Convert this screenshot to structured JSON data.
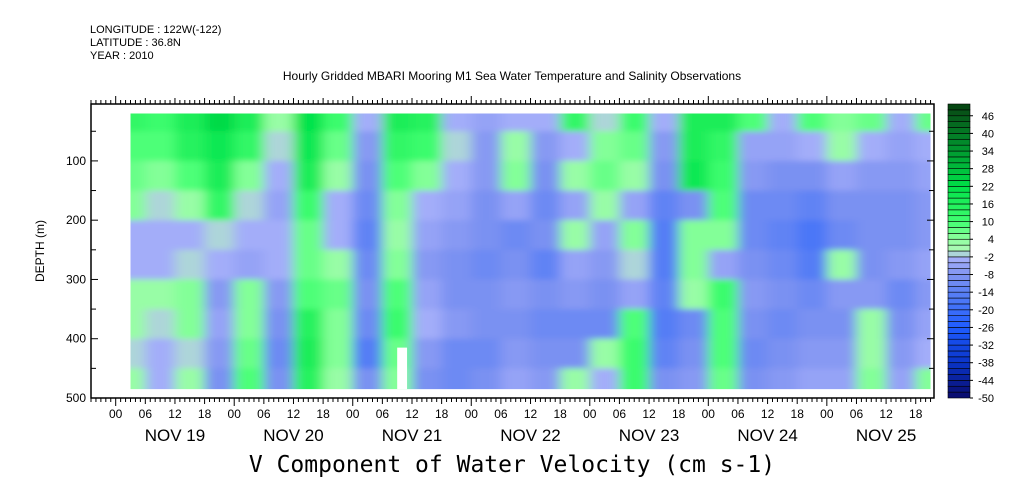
{
  "header": {
    "longitude": "LONGITUDE : 122W(-122)",
    "latitude": "LATITUDE : 36.8N",
    "year": "YEAR : 2010"
  },
  "chart_data": {
    "type": "heatmap",
    "title": "Hourly Gridded MBARI Mooring M1 Sea Water Temperature and Salinity Observations",
    "xlabel": "V Component of Water Velocity (cm s-1)",
    "ylabel": "DEPTH (m)",
    "x_units": "hours since NOV 19 00:00",
    "xlim": [
      -5,
      165.7
    ],
    "ylim": [
      500,
      4
    ],
    "y_ticks": [
      100,
      200,
      300,
      400,
      500
    ],
    "x_hour_ticks": [
      "00",
      "06",
      "12",
      "18"
    ],
    "x_days": [
      "NOV 19",
      "NOV 20",
      "NOV 21",
      "NOV 22",
      "NOV 23",
      "NOV 24",
      "NOV 25"
    ],
    "x": [
      3,
      9,
      15,
      21,
      27,
      33,
      39,
      45,
      51,
      57,
      63,
      69,
      75,
      81,
      87,
      93,
      99,
      105,
      111,
      117,
      123,
      129,
      135,
      141,
      147,
      153,
      159,
      165
    ],
    "depths": [
      25,
      75,
      125,
      175,
      225,
      275,
      325,
      375,
      425,
      475
    ],
    "values": [
      [
        12,
        8,
        6,
        4,
        -4,
        -4,
        3,
        2,
        -2,
        3
      ],
      [
        10,
        8,
        4,
        -2,
        -4,
        -4,
        2,
        -2,
        -4,
        -4
      ],
      [
        16,
        14,
        8,
        2,
        -4,
        -2,
        4,
        4,
        -2,
        2
      ],
      [
        22,
        18,
        16,
        12,
        -2,
        -4,
        -8,
        -6,
        -8,
        -10
      ],
      [
        16,
        12,
        4,
        -2,
        -4,
        -6,
        4,
        4,
        6,
        8
      ],
      [
        2,
        -2,
        -4,
        -6,
        -4,
        -4,
        -8,
        -10,
        -12,
        -10
      ],
      [
        20,
        18,
        16,
        10,
        6,
        6,
        8,
        14,
        16,
        14
      ],
      [
        10,
        6,
        2,
        -4,
        -4,
        2,
        6,
        4,
        4,
        2
      ],
      [
        -4,
        -8,
        -10,
        -12,
        -14,
        -12,
        -10,
        -12,
        -16,
        -10
      ],
      [
        16,
        12,
        8,
        4,
        2,
        4,
        8,
        10,
        6,
        4
      ],
      [
        14,
        10,
        4,
        -4,
        -6,
        -8,
        -6,
        -4,
        -8,
        -10
      ],
      [
        -4,
        -2,
        -4,
        -6,
        -8,
        -10,
        -10,
        -8,
        -12,
        -12
      ],
      [
        -6,
        -8,
        -8,
        -10,
        -10,
        -12,
        -10,
        -10,
        -12,
        -10
      ],
      [
        -4,
        2,
        4,
        -6,
        -12,
        -10,
        -8,
        -10,
        -8,
        -6
      ],
      [
        -4,
        -8,
        -10,
        -12,
        -10,
        -14,
        -10,
        -12,
        -10,
        -8
      ],
      [
        12,
        -4,
        2,
        -6,
        2,
        -6,
        -8,
        -12,
        -10,
        2
      ],
      [
        -2,
        4,
        6,
        2,
        -6,
        -8,
        -10,
        -12,
        2,
        -4
      ],
      [
        10,
        6,
        2,
        -6,
        4,
        -2,
        -6,
        8,
        10,
        10
      ],
      [
        -4,
        -8,
        -10,
        -14,
        -16,
        -16,
        -14,
        -16,
        -14,
        -10
      ],
      [
        16,
        16,
        18,
        -10,
        4,
        4,
        2,
        -12,
        -10,
        -8
      ],
      [
        16,
        12,
        10,
        8,
        4,
        -6,
        10,
        8,
        8,
        6
      ],
      [
        8,
        -6,
        -8,
        -12,
        -12,
        -10,
        -8,
        -10,
        -12,
        -10
      ],
      [
        -4,
        -6,
        -10,
        -12,
        -14,
        -12,
        -10,
        -12,
        -10,
        -8
      ],
      [
        8,
        -4,
        -10,
        -14,
        -18,
        -16,
        -12,
        -10,
        -8,
        -6
      ],
      [
        4,
        2,
        -6,
        -10,
        -12,
        2,
        -8,
        -10,
        -8,
        -6
      ],
      [
        6,
        -4,
        -8,
        -10,
        -10,
        -10,
        -8,
        2,
        2,
        4
      ],
      [
        -4,
        -6,
        -8,
        -10,
        -10,
        -8,
        -12,
        -10,
        -8,
        -6
      ],
      [
        6,
        -4,
        -6,
        -8,
        -8,
        -6,
        -8,
        -6,
        -4,
        4
      ]
    ],
    "missing": {
      "x_range": [
        57,
        59
      ],
      "depth_range": [
        415,
        485
      ]
    },
    "colorbar": {
      "min": -50,
      "max": 50,
      "step": 2,
      "labels": [
        "46",
        "40",
        "34",
        "28",
        "22",
        "16",
        "10",
        "4",
        "-2",
        "-8",
        "-14",
        "-20",
        "-26",
        "-32",
        "-38",
        "-44",
        "-50"
      ],
      "label_values": [
        46,
        40,
        34,
        28,
        22,
        16,
        10,
        4,
        -2,
        -8,
        -14,
        -20,
        -26,
        -32,
        -38,
        -44,
        -50
      ]
    },
    "colors": {
      "stops": [
        [
          -50,
          "#0a0a6a"
        ],
        [
          -38,
          "#0a34c8"
        ],
        [
          -26,
          "#1f5cff"
        ],
        [
          -14,
          "#5a80f4"
        ],
        [
          -8,
          "#8094f2"
        ],
        [
          -2,
          "#aab2fa"
        ],
        [
          0,
          "#b0f8b8"
        ],
        [
          4,
          "#90ffa0"
        ],
        [
          10,
          "#40ff70"
        ],
        [
          22,
          "#00e048"
        ],
        [
          34,
          "#009a30"
        ],
        [
          46,
          "#075a1a"
        ],
        [
          50,
          "#064010"
        ]
      ]
    }
  }
}
